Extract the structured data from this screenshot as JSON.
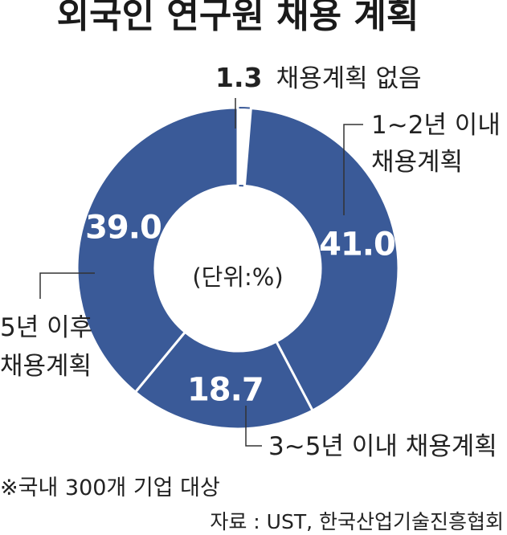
{
  "chart_data": {
    "type": "pie",
    "title": "외국인 연구원 채용 계획",
    "unit_label": "(단위:%)",
    "categories": [
      "채용계획 없음",
      "1~2년 이내 채용계획",
      "3~5년 이내 채용계획",
      "5년 이후 채용계획"
    ],
    "values": [
      1.3,
      41.0,
      18.7,
      39.0
    ],
    "value_labels": [
      "1.3",
      "41.0",
      "18.7",
      "39.0"
    ],
    "category_lines": [
      [
        "채용계획 없음"
      ],
      [
        "1~2년 이내",
        "채용계획"
      ],
      [
        "3~5년 이내 채용계획"
      ],
      [
        "5년 이후",
        "채용계획"
      ]
    ],
    "colors": [
      "#ffffff",
      "#3a5a98",
      "#3a5a98",
      "#3a5a98"
    ],
    "accent": "#3a5a98"
  },
  "footnote": "※국내 300개 기업 대상",
  "source": "자료 : UST, 한국산업기술진흥협회"
}
